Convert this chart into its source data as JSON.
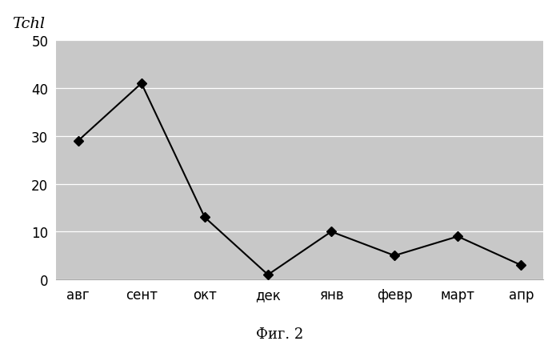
{
  "categories": [
    "авг",
    "сент",
    "окт",
    "дек",
    "янв",
    "февр",
    "март",
    "апр"
  ],
  "values": [
    29,
    41,
    13,
    1,
    10,
    5,
    9,
    3
  ],
  "ylim": [
    0,
    50
  ],
  "yticks": [
    0,
    10,
    20,
    30,
    40,
    50
  ],
  "ylabel_text": "Tchl",
  "caption": "Фиг. 2",
  "line_color": "#000000",
  "marker": "D",
  "marker_size": 6,
  "marker_color": "#000000",
  "plot_bg_color": "#c8c8c8",
  "fig_bg_color": "#ffffff",
  "grid_color": "#ffffff",
  "line_width": 1.5,
  "axis_fontsize": 12,
  "caption_fontsize": 13,
  "ylabel_fontsize": 14
}
